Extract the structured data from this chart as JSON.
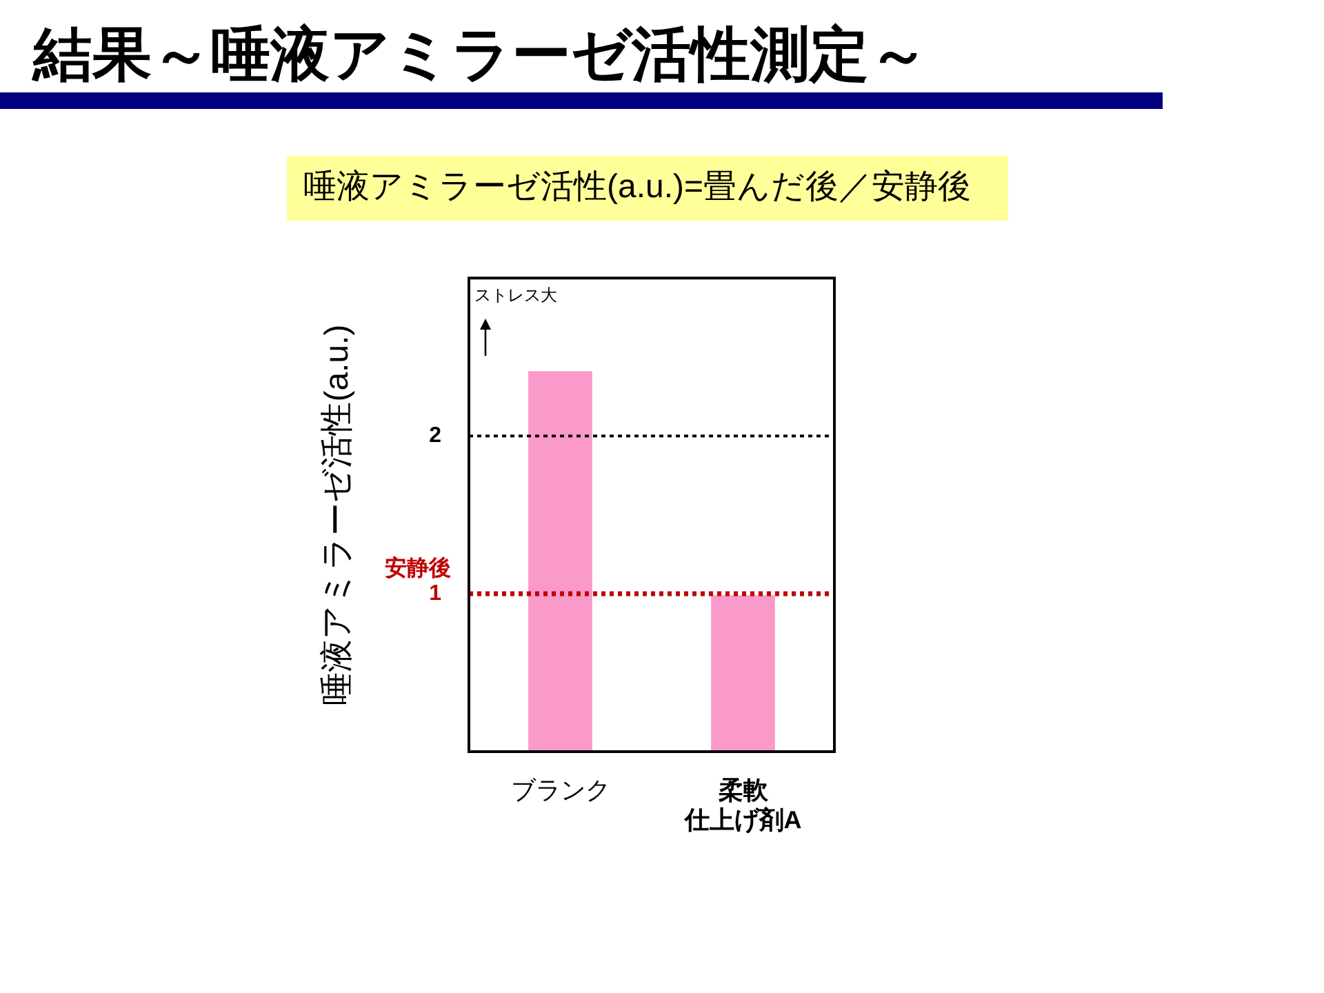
{
  "chart_data": {
    "type": "bar",
    "title": "結果～唾液アミラーゼ活性測定～",
    "subtitle": "唾液アミラーゼ活性(a.u.)=畳んだ後／安静後",
    "ylabel": "唾液アミラーゼ活性(a.u.)",
    "categories": [
      "ブランク",
      "柔軟仕上げ剤A"
    ],
    "values": [
      2.41,
      0.99
    ],
    "color": "#fa9acb",
    "ylim": [
      0,
      3
    ],
    "yticks": [
      1,
      2
    ],
    "grid": false,
    "legend": false,
    "ref_lines": [
      {
        "axis": "y",
        "value": 2,
        "color": "#000000",
        "line_style": "dotted"
      },
      {
        "axis": "y",
        "value": 1,
        "label": "安静後",
        "color": "#c00000",
        "line_style": "dotted"
      }
    ],
    "annotations": [
      "ストレス大"
    ]
  }
}
